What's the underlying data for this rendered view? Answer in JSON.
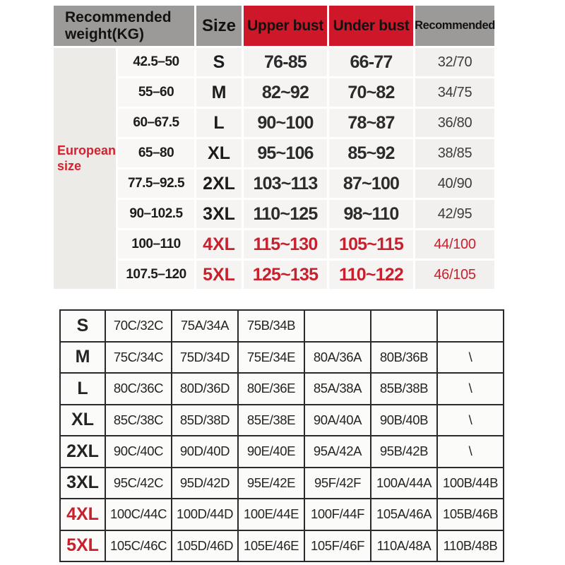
{
  "labels": {
    "european_size": "European size"
  },
  "colors": {
    "header_gray": "#9c9a98",
    "header_red": "#ce1728",
    "highlight_red_text": "#c9202e",
    "cell_background": "#f5f4f2",
    "side_strip_background": "#edebe8",
    "cup_table_border": "#2a2a2a",
    "page_background": "#ffffff"
  },
  "chart_data": [
    {
      "type": "table",
      "columns": [
        "Recommended weight(KG)",
        "Size",
        "Upper bust",
        "Under bust",
        "Recommended"
      ],
      "row_group_label": "European size",
      "highlighted_rows": [
        "4XL",
        "5XL"
      ],
      "rows": [
        [
          "42.5–50",
          "S",
          "76-85",
          "66-77",
          "32/70"
        ],
        [
          "55–60",
          "M",
          "82~92",
          "70~82",
          "34/75"
        ],
        [
          "60–67.5",
          "L",
          "90~100",
          "78~87",
          "36/80"
        ],
        [
          "65–80",
          "XL",
          "95~106",
          "85~92",
          "38/85"
        ],
        [
          "77.5–92.5",
          "2XL",
          "103~113",
          "87~100",
          "40/90"
        ],
        [
          "90–102.5",
          "3XL",
          "110~125",
          "98~110",
          "42/95"
        ],
        [
          "100–110",
          "4XL",
          "115~130",
          "105~115",
          "44/100"
        ],
        [
          "107.5–120",
          "5XL",
          "125~135",
          "110~122",
          "46/105"
        ]
      ]
    },
    {
      "type": "table",
      "columns": [],
      "highlighted_rows": [
        "4XL",
        "5XL"
      ],
      "rows": [
        [
          "S",
          "70C/32C",
          "75A/34A",
          "75B/34B",
          "",
          "",
          ""
        ],
        [
          "M",
          "75C/34C",
          "75D/34D",
          "75E/34E",
          "80A/36A",
          "80B/36B",
          "\\"
        ],
        [
          "L",
          "80C/36C",
          "80D/36D",
          "80E/36E",
          "85A/38A",
          "85B/38B",
          "\\"
        ],
        [
          "XL",
          "85C/38C",
          "85D/38D",
          "85E/38E",
          "90A/40A",
          "90B/40B",
          "\\"
        ],
        [
          "2XL",
          "90C/40C",
          "90D/40D",
          "90E/40E",
          "95A/42A",
          "95B/42B",
          "\\"
        ],
        [
          "3XL",
          "95C/42C",
          "95D/42D",
          "95E/42E",
          "95F/42F",
          "100A/44A",
          "100B/44B"
        ],
        [
          "4XL",
          "100C/44C",
          "100D/44D",
          "100E/44E",
          "100F/44F",
          "105A/46A",
          "105B/46B"
        ],
        [
          "5XL",
          "105C/46C",
          "105D/46D",
          "105E/46E",
          "105F/46F",
          "110A/48A",
          "110B/48B"
        ]
      ]
    }
  ]
}
